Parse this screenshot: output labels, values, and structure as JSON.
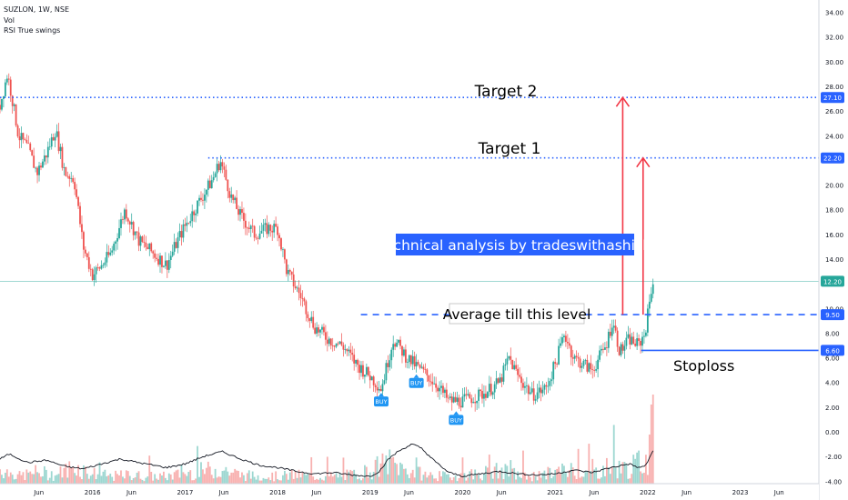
{
  "header": {
    "symbol_line": "SUZLON, 1W, NSE",
    "indicator_1": "Vol",
    "indicator_2": "RSI True swings"
  },
  "annotations": {
    "target2": "Target  2",
    "target1": "Target  1",
    "banner": "Technical analysis by tradeswithashish",
    "average": "Average till this level",
    "stoploss": "Stoploss",
    "buy_label": "BUY"
  },
  "colors": {
    "up": "#26a69a",
    "down": "#ef5350",
    "level_line": "#2962ff",
    "arrow": "#f23645",
    "banner_bg": "#2962ff",
    "buy_badge": "#2196f3",
    "price_line": "#26a69a",
    "rsi_line": "#131722"
  },
  "chart_data": {
    "type": "candlestick",
    "y_axis_ticks": [
      "34.00",
      "32.00",
      "30.00",
      "28.00",
      "26.00",
      "24.00",
      "22.00",
      "20.00",
      "18.00",
      "16.00",
      "14.00",
      "12.00",
      "10.00",
      "8.00",
      "6.00",
      "4.00",
      "2.00",
      "0.00",
      "-2.00",
      "-4.00"
    ],
    "y_range": [
      -4.2,
      35
    ],
    "x_axis_ticks": [
      "Jun",
      "2016",
      "Jun",
      "2017",
      "Jun",
      "2018",
      "Jun",
      "2019",
      "Jun",
      "2020",
      "Jun",
      "2021",
      "Jun",
      "2022",
      "Jun",
      "2023",
      "Jun"
    ],
    "x_axis_ticks_t": [
      2015.42,
      2016.0,
      2016.42,
      2017.0,
      2017.42,
      2018.0,
      2018.42,
      2019.0,
      2019.42,
      2020.0,
      2020.42,
      2021.0,
      2021.42,
      2022.0,
      2022.42,
      2023.0,
      2023.42
    ],
    "x_range": [
      2015.0,
      2023.85
    ],
    "price_points": [
      [
        2015.0,
        26.5
      ],
      [
        2015.08,
        29.0
      ],
      [
        2015.12,
        27.5
      ],
      [
        2015.2,
        24.0
      ],
      [
        2015.3,
        23.0
      ],
      [
        2015.4,
        21.0
      ],
      [
        2015.5,
        22.5
      ],
      [
        2015.6,
        24.5
      ],
      [
        2015.7,
        21.0
      ],
      [
        2015.8,
        20.5
      ],
      [
        2015.9,
        15.0
      ],
      [
        2016.0,
        12.7
      ],
      [
        2016.1,
        13.5
      ],
      [
        2016.2,
        14.5
      ],
      [
        2016.35,
        18.0
      ],
      [
        2016.5,
        15.5
      ],
      [
        2016.65,
        14.5
      ],
      [
        2016.8,
        13.5
      ],
      [
        2016.95,
        16.0
      ],
      [
        2017.1,
        18.0
      ],
      [
        2017.3,
        20.5
      ],
      [
        2017.38,
        22.0
      ],
      [
        2017.5,
        19.0
      ],
      [
        2017.6,
        17.5
      ],
      [
        2017.75,
        16.0
      ],
      [
        2017.9,
        16.5
      ],
      [
        2018.0,
        16.5
      ],
      [
        2018.1,
        13.0
      ],
      [
        2018.25,
        11.0
      ],
      [
        2018.4,
        8.5
      ],
      [
        2018.55,
        7.5
      ],
      [
        2018.7,
        7.0
      ],
      [
        2018.85,
        5.5
      ],
      [
        2019.0,
        4.5
      ],
      [
        2019.12,
        3.5
      ],
      [
        2019.25,
        7.5
      ],
      [
        2019.4,
        6.0
      ],
      [
        2019.55,
        5.0
      ],
      [
        2019.7,
        4.0
      ],
      [
        2019.85,
        2.5
      ],
      [
        2020.0,
        2.5
      ],
      [
        2020.2,
        3.0
      ],
      [
        2020.4,
        4.0
      ],
      [
        2020.5,
        6.0
      ],
      [
        2020.6,
        4.5
      ],
      [
        2020.75,
        3.0
      ],
      [
        2020.9,
        3.5
      ],
      [
        2021.0,
        5.5
      ],
      [
        2021.1,
        8.0
      ],
      [
        2021.2,
        6.0
      ],
      [
        2021.3,
        5.5
      ],
      [
        2021.4,
        5.0
      ],
      [
        2021.55,
        7.0
      ],
      [
        2021.62,
        9.0
      ],
      [
        2021.7,
        6.5
      ],
      [
        2021.8,
        7.5
      ],
      [
        2021.9,
        7.0
      ],
      [
        2021.97,
        8.0
      ],
      [
        2022.0,
        9.5
      ],
      [
        2022.05,
        12.2
      ]
    ],
    "volume_points": [
      [
        2015.0,
        1.0
      ],
      [
        2015.2,
        0.5
      ],
      [
        2015.4,
        0.8
      ],
      [
        2015.6,
        0.6
      ],
      [
        2015.8,
        1.2
      ],
      [
        2016.0,
        0.7
      ],
      [
        2016.2,
        0.5
      ],
      [
        2016.4,
        0.6
      ],
      [
        2016.6,
        0.5
      ],
      [
        2016.8,
        0.5
      ],
      [
        2017.0,
        0.7
      ],
      [
        2017.2,
        0.9
      ],
      [
        2017.4,
        1.0
      ],
      [
        2017.6,
        0.6
      ],
      [
        2017.8,
        0.5
      ],
      [
        2018.0,
        0.5
      ],
      [
        2018.2,
        0.6
      ],
      [
        2018.4,
        0.5
      ],
      [
        2018.6,
        0.5
      ],
      [
        2018.8,
        0.6
      ],
      [
        2019.0,
        0.9
      ],
      [
        2019.2,
        1.5
      ],
      [
        2019.4,
        0.9
      ],
      [
        2019.6,
        0.6
      ],
      [
        2019.8,
        0.5
      ],
      [
        2020.0,
        0.6
      ],
      [
        2020.2,
        0.7
      ],
      [
        2020.4,
        0.9
      ],
      [
        2020.6,
        0.6
      ],
      [
        2020.8,
        0.5
      ],
      [
        2021.0,
        0.8
      ],
      [
        2021.2,
        1.0
      ],
      [
        2021.4,
        0.7
      ],
      [
        2021.6,
        1.2
      ],
      [
        2021.8,
        1.0
      ],
      [
        2022.0,
        1.8
      ],
      [
        2022.05,
        3.5
      ]
    ],
    "rsi_points": [
      [
        2015.0,
        -2.2
      ],
      [
        2015.1,
        -1.8
      ],
      [
        2015.3,
        -2.5
      ],
      [
        2015.5,
        -2.3
      ],
      [
        2015.7,
        -2.8
      ],
      [
        2015.9,
        -3.0
      ],
      [
        2016.1,
        -2.6
      ],
      [
        2016.3,
        -2.2
      ],
      [
        2016.5,
        -2.5
      ],
      [
        2016.8,
        -2.9
      ],
      [
        2017.0,
        -2.6
      ],
      [
        2017.2,
        -2.0
      ],
      [
        2017.4,
        -1.6
      ],
      [
        2017.6,
        -2.2
      ],
      [
        2017.8,
        -2.7
      ],
      [
        2018.0,
        -2.9
      ],
      [
        2018.2,
        -3.2
      ],
      [
        2018.4,
        -3.4
      ],
      [
        2018.6,
        -3.3
      ],
      [
        2018.8,
        -3.5
      ],
      [
        2019.0,
        -3.6
      ],
      [
        2019.1,
        -3.2
      ],
      [
        2019.2,
        -2.2
      ],
      [
        2019.3,
        -1.6
      ],
      [
        2019.45,
        -1.0
      ],
      [
        2019.55,
        -1.3
      ],
      [
        2019.7,
        -2.4
      ],
      [
        2019.85,
        -3.3
      ],
      [
        2020.0,
        -3.6
      ],
      [
        2020.2,
        -3.4
      ],
      [
        2020.4,
        -3.2
      ],
      [
        2020.6,
        -3.4
      ],
      [
        2020.8,
        -3.5
      ],
      [
        2021.0,
        -3.4
      ],
      [
        2021.2,
        -3.1
      ],
      [
        2021.4,
        -3.3
      ],
      [
        2021.6,
        -2.9
      ],
      [
        2021.8,
        -2.6
      ],
      [
        2021.9,
        -2.9
      ],
      [
        2021.97,
        -2.8
      ],
      [
        2022.0,
        -2.4
      ],
      [
        2022.05,
        -1.6
      ]
    ],
    "levels": {
      "target2": {
        "value": 27.1,
        "label": "27.10",
        "from_t": 2015.0
      },
      "target1": {
        "value": 22.2,
        "label": "22.20",
        "from_t": 2017.25
      },
      "average": {
        "value": 9.5,
        "label": "9.50",
        "from_t": 2018.9
      },
      "stoploss": {
        "value": 6.6,
        "label": "6.60",
        "from_t": 2021.93
      },
      "current": {
        "value": 12.2,
        "label": "12.20"
      }
    },
    "arrows": [
      {
        "t": 2021.73,
        "from": 9.5,
        "to": 27.1
      },
      {
        "t": 2021.95,
        "from": 9.5,
        "to": 22.2
      }
    ],
    "buy_signals": [
      {
        "t": 2019.12,
        "price": 2.5
      },
      {
        "t": 2019.5,
        "price": 4.0
      },
      {
        "t": 2019.93,
        "price": 1.0
      }
    ]
  }
}
